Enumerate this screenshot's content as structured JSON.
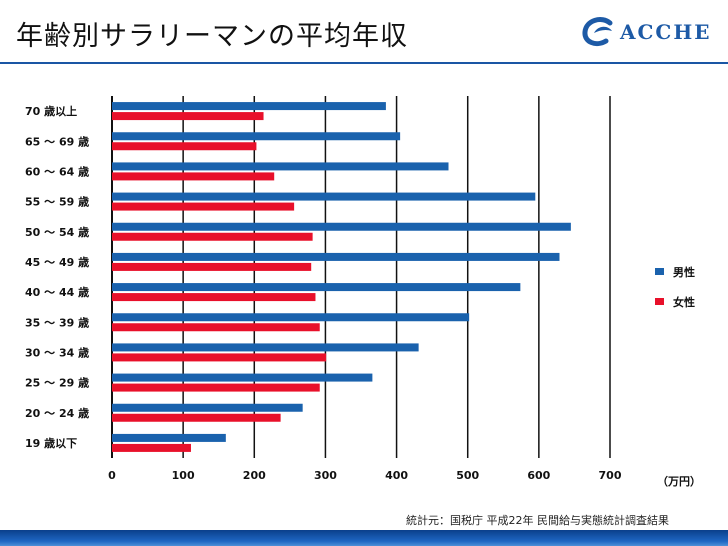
{
  "header": {
    "title": "年齢別サラリーマンの平均年収",
    "logo_text": "ACCHE"
  },
  "colors": {
    "male": "#1a62ad",
    "female": "#e8102a",
    "grid": "#111111",
    "rule": "#1a56a4"
  },
  "chart_data": {
    "type": "bar",
    "orientation": "horizontal",
    "categories": [
      "70 歳以上",
      "65 ～ 69 歳",
      "60 ～ 64 歳",
      "55 ～ 59 歳",
      "50 ～ 54 歳",
      "45 ～ 49 歳",
      "40 ～ 44 歳",
      "35 ～ 39 歳",
      "30 ～ 34 歳",
      "25 ～ 29 歳",
      "20 ～ 24 歳",
      "19 歳以下"
    ],
    "series": [
      {
        "name": "男性",
        "values": [
          385,
          405,
          473,
          595,
          645,
          629,
          574,
          502,
          431,
          366,
          268,
          160
        ]
      },
      {
        "name": "女性",
        "values": [
          213,
          203,
          228,
          256,
          282,
          280,
          286,
          292,
          301,
          292,
          237,
          111
        ]
      }
    ],
    "xlim": [
      0,
      700
    ],
    "xticks": [
      "0",
      "100",
      "200",
      "300",
      "400",
      "500",
      "600",
      "700"
    ],
    "unit_label": "（万円）",
    "legend_position": "right",
    "grid": true
  },
  "source": "統計元：国税庁 平成22年 民間給与実態統計調査結果"
}
